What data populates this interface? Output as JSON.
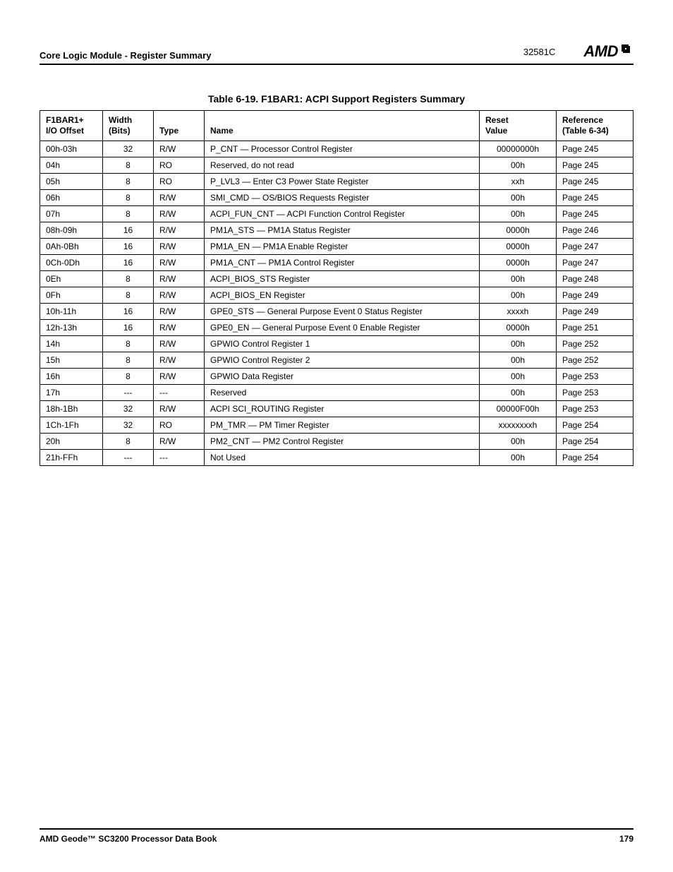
{
  "header": {
    "section": "Core Logic Module - Register Summary",
    "doc_number": "32581C",
    "logo_text": "AMD"
  },
  "table": {
    "title": "Table 6-19.  F1BAR1: ACPI Support Registers Summary",
    "columns": {
      "offset": "F1BAR1+\nI/O Offset",
      "width": "Width\n(Bits)",
      "type": "Type",
      "name": "Name",
      "reset": "Reset\nValue",
      "ref": "Reference\n(Table 6-34)"
    },
    "rows": [
      {
        "offset": "00h-03h",
        "width": "32",
        "type": "R/W",
        "name": "P_CNT — Processor Control Register",
        "reset": "00000000h",
        "ref": "Page 245"
      },
      {
        "offset": "04h",
        "width": "8",
        "type": "RO",
        "name": "Reserved, do not read",
        "reset": "00h",
        "ref": "Page 245"
      },
      {
        "offset": "05h",
        "width": "8",
        "type": "RO",
        "name": "P_LVL3 — Enter C3 Power State Register",
        "reset": "xxh",
        "ref": "Page 245"
      },
      {
        "offset": "06h",
        "width": "8",
        "type": "R/W",
        "name": "SMI_CMD — OS/BIOS Requests Register",
        "reset": "00h",
        "ref": "Page 245"
      },
      {
        "offset": "07h",
        "width": "8",
        "type": "R/W",
        "name": "ACPI_FUN_CNT — ACPI Function Control Register",
        "reset": "00h",
        "ref": "Page 245"
      },
      {
        "offset": "08h-09h",
        "width": "16",
        "type": "R/W",
        "name": "PM1A_STS — PM1A Status Register",
        "reset": "0000h",
        "ref": "Page 246"
      },
      {
        "offset": "0Ah-0Bh",
        "width": "16",
        "type": "R/W",
        "name": "PM1A_EN — PM1A Enable Register",
        "reset": "0000h",
        "ref": "Page 247"
      },
      {
        "offset": "0Ch-0Dh",
        "width": "16",
        "type": "R/W",
        "name": "PM1A_CNT — PM1A Control Register",
        "reset": "0000h",
        "ref": "Page 247"
      },
      {
        "offset": "0Eh",
        "width": "8",
        "type": "R/W",
        "name": "ACPI_BIOS_STS Register",
        "reset": "00h",
        "ref": "Page 248"
      },
      {
        "offset": "0Fh",
        "width": "8",
        "type": "R/W",
        "name": "ACPI_BIOS_EN Register",
        "reset": "00h",
        "ref": "Page 249"
      },
      {
        "offset": "10h-11h",
        "width": "16",
        "type": "R/W",
        "name": "GPE0_STS — General Purpose Event 0 Status Register",
        "reset": "xxxxh",
        "ref": "Page 249"
      },
      {
        "offset": "12h-13h",
        "width": "16",
        "type": "R/W",
        "name": "GPE0_EN — General Purpose Event 0 Enable Register",
        "reset": "0000h",
        "ref": "Page 251"
      },
      {
        "offset": "14h",
        "width": "8",
        "type": "R/W",
        "name": "GPWIO Control Register 1",
        "reset": "00h",
        "ref": "Page 252"
      },
      {
        "offset": "15h",
        "width": "8",
        "type": "R/W",
        "name": "GPWIO Control Register 2",
        "reset": "00h",
        "ref": "Page 252"
      },
      {
        "offset": "16h",
        "width": "8",
        "type": "R/W",
        "name": "GPWIO Data Register",
        "reset": "00h",
        "ref": "Page 253"
      },
      {
        "offset": "17h",
        "width": "---",
        "type": "---",
        "name": "Reserved",
        "reset": "00h",
        "ref": "Page 253"
      },
      {
        "offset": "18h-1Bh",
        "width": "32",
        "type": "R/W",
        "name": "ACPI SCI_ROUTING Register",
        "reset": "00000F00h",
        "ref": "Page 253"
      },
      {
        "offset": "1Ch-1Fh",
        "width": "32",
        "type": "RO",
        "name": "PM_TMR — PM Timer Register",
        "reset": "xxxxxxxxh",
        "ref": "Page 254"
      },
      {
        "offset": "20h",
        "width": "8",
        "type": "R/W",
        "name": "PM2_CNT — PM2 Control Register",
        "reset": "00h",
        "ref": "Page 254"
      },
      {
        "offset": "21h-FFh",
        "width": "---",
        "type": "---",
        "name": "Not Used",
        "reset": "00h",
        "ref": "Page 254"
      }
    ]
  },
  "footer": {
    "book_title": "AMD Geode™ SC3200 Processor Data Book",
    "page_number": "179"
  }
}
